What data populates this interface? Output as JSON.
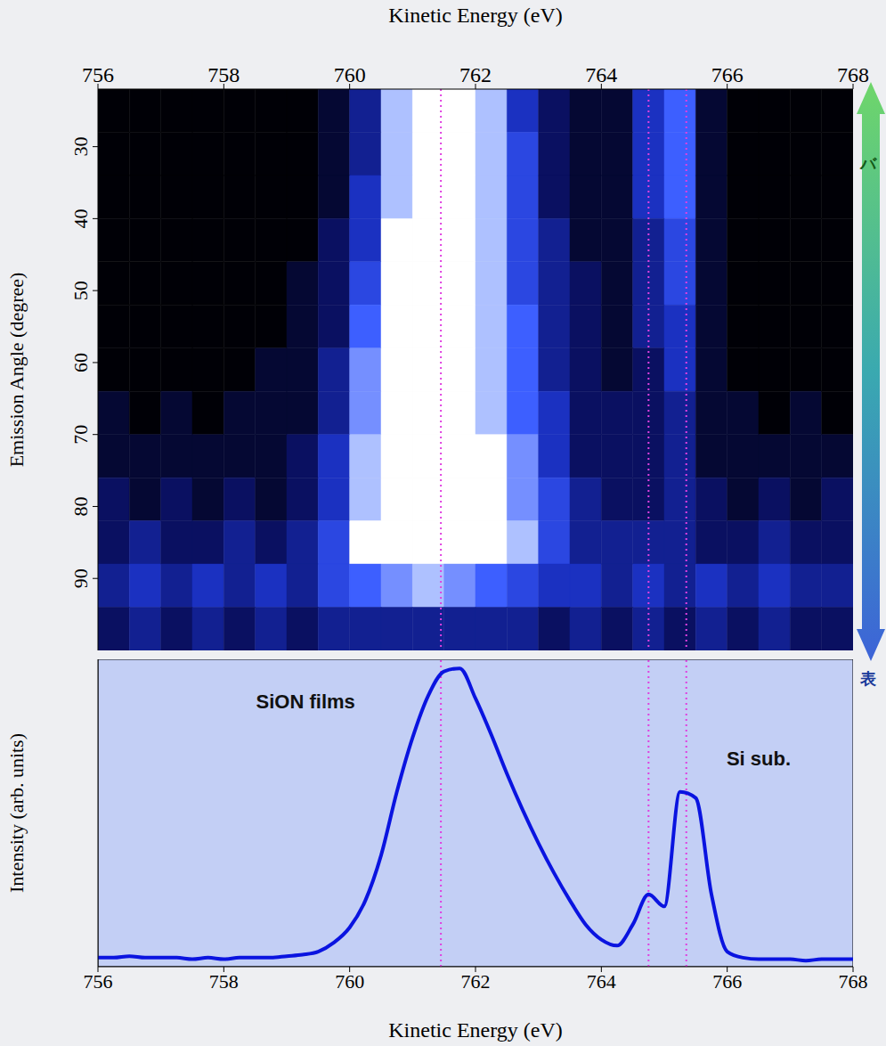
{
  "chart_data": [
    {
      "type": "heatmap",
      "xlabel": "Kinetic Energy (eV)",
      "ylabel": "Emission Angle (degree)",
      "xlim": [
        756,
        768
      ],
      "xticks": [
        756,
        758,
        760,
        762,
        764,
        766,
        768
      ],
      "ylim": [
        22,
        100
      ],
      "yticks": [
        30,
        40,
        50,
        60,
        70,
        80,
        90
      ],
      "x_bins": [
        756,
        756.5,
        757,
        757.5,
        758,
        758.5,
        759,
        759.5,
        760,
        760.5,
        761,
        761.5,
        762,
        762.5,
        763,
        763.5,
        764,
        764.5,
        765,
        765.5,
        766,
        766.5,
        767,
        767.5,
        768
      ],
      "y_bins": [
        22,
        28,
        34,
        40,
        46,
        52,
        58,
        64,
        70,
        76,
        82,
        88,
        94,
        100
      ],
      "zlim": [
        0,
        9
      ],
      "cells": [
        [
          0,
          0,
          0,
          0,
          0,
          0,
          0,
          1,
          3,
          8,
          9,
          9,
          8,
          4,
          2,
          1,
          1,
          4,
          6,
          1,
          0,
          0,
          0,
          0
        ],
        [
          0,
          0,
          0,
          0,
          0,
          0,
          0,
          1,
          3,
          8,
          9,
          9,
          8,
          5,
          2,
          1,
          1,
          4,
          6,
          1,
          0,
          0,
          0,
          0
        ],
        [
          0,
          0,
          0,
          0,
          0,
          0,
          0,
          1,
          4,
          8,
          9,
          9,
          8,
          5,
          2,
          1,
          1,
          4,
          6,
          1,
          0,
          0,
          0,
          0
        ],
        [
          0,
          0,
          0,
          0,
          0,
          0,
          0,
          2,
          4,
          9,
          9,
          9,
          8,
          5,
          3,
          1,
          1,
          3,
          5,
          1,
          0,
          0,
          0,
          0
        ],
        [
          0,
          0,
          0,
          0,
          0,
          0,
          1,
          2,
          5,
          9,
          9,
          9,
          8,
          5,
          3,
          2,
          1,
          3,
          5,
          1,
          0,
          0,
          0,
          0
        ],
        [
          0,
          0,
          0,
          0,
          0,
          0,
          1,
          2,
          6,
          9,
          9,
          9,
          8,
          6,
          3,
          2,
          1,
          3,
          4,
          1,
          0,
          0,
          0,
          0
        ],
        [
          0,
          0,
          0,
          0,
          0,
          1,
          1,
          3,
          7,
          9,
          9,
          9,
          8,
          6,
          3,
          2,
          1,
          2,
          4,
          1,
          0,
          0,
          0,
          0
        ],
        [
          1,
          0,
          1,
          0,
          1,
          1,
          1,
          3,
          7,
          9,
          9,
          9,
          8,
          6,
          4,
          2,
          2,
          2,
          3,
          1,
          1,
          0,
          1,
          0
        ],
        [
          1,
          1,
          1,
          1,
          1,
          1,
          2,
          4,
          8,
          9,
          9,
          9,
          9,
          7,
          4,
          2,
          2,
          2,
          3,
          1,
          1,
          1,
          1,
          1
        ],
        [
          2,
          1,
          2,
          1,
          2,
          1,
          2,
          4,
          8,
          9,
          9,
          9,
          9,
          7,
          5,
          3,
          2,
          2,
          3,
          2,
          1,
          2,
          1,
          2
        ],
        [
          2,
          3,
          2,
          2,
          3,
          2,
          3,
          5,
          9,
          9,
          9,
          9,
          9,
          8,
          5,
          3,
          3,
          3,
          3,
          2,
          2,
          3,
          2,
          2
        ],
        [
          3,
          4,
          3,
          4,
          3,
          4,
          3,
          5,
          6,
          7,
          8,
          7,
          6,
          5,
          4,
          4,
          3,
          4,
          3,
          4,
          3,
          4,
          3,
          3
        ],
        [
          2,
          3,
          2,
          3,
          2,
          3,
          2,
          3,
          3,
          3,
          3,
          3,
          3,
          3,
          2,
          3,
          2,
          3,
          2,
          3,
          2,
          3,
          2,
          2
        ]
      ],
      "markers": [
        761.45,
        764.75,
        765.35
      ],
      "arrow_labels": [
        "バ",
        "表"
      ]
    },
    {
      "type": "line",
      "xlabel": "Kinetic Energy (eV)",
      "ylabel": "Intensity (arb. units)",
      "xlim": [
        756,
        768
      ],
      "xticks": [
        756,
        758,
        760,
        762,
        764,
        766,
        768
      ],
      "ylim": [
        0,
        102
      ],
      "tick_labels": "x",
      "color": "#0a14e0",
      "x": [
        756,
        756.25,
        756.5,
        756.75,
        757,
        757.25,
        757.5,
        757.75,
        758,
        758.25,
        758.5,
        758.75,
        759,
        759.25,
        759.5,
        759.75,
        760,
        760.25,
        760.5,
        760.75,
        761,
        761.25,
        761.5,
        761.75,
        762,
        762.25,
        762.5,
        762.75,
        763,
        763.25,
        763.5,
        763.75,
        764,
        764.25,
        764.5,
        764.75,
        765,
        765.25,
        765.5,
        765.75,
        766,
        766.25,
        766.5,
        766.75,
        767,
        767.25,
        767.5,
        767.75,
        768
      ],
      "values": [
        3,
        3,
        3.5,
        3,
        3,
        3,
        2.5,
        3,
        2.5,
        3,
        3,
        3,
        3.5,
        4,
        5,
        8,
        13,
        22,
        37,
        58,
        76,
        90,
        98,
        99,
        89,
        77,
        64,
        52,
        41,
        31,
        22,
        14,
        9,
        7,
        14,
        24,
        20,
        58,
        56,
        24,
        5,
        3,
        2.5,
        2.5,
        2.5,
        2,
        2.5,
        2.5,
        2.5
      ],
      "markers": [
        761.45,
        764.75,
        765.35
      ],
      "annotations": [
        {
          "text": "SiON films",
          "x": 759.3,
          "y": 88
        },
        {
          "text": "Si sub.",
          "x": 766.5,
          "y": 69
        }
      ]
    }
  ]
}
